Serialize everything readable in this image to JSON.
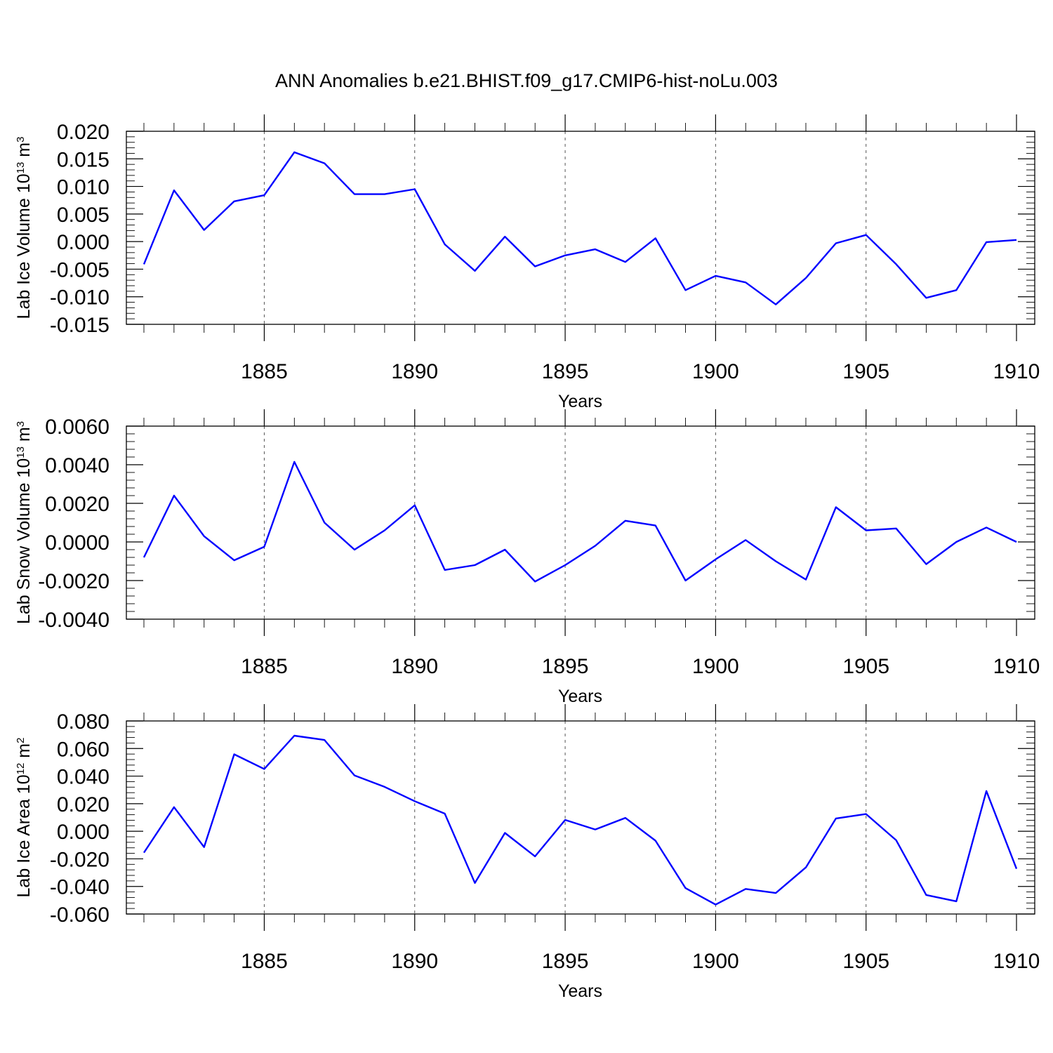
{
  "title": "ANN Anomalies b.e21.BHIST.f09_g17.CMIP6-hist-noLu.003",
  "colors": {
    "line": "#0000ff",
    "grid": "#555555",
    "axes": "#000000"
  },
  "chart_data": [
    {
      "type": "line",
      "ylabel": {
        "text": "Lab Ice Volume 10",
        "sup": "13",
        "unit": " m",
        "unit_sup": "3"
      },
      "xlabel": "Years",
      "xlim": [
        1881,
        1910
      ],
      "ylim": [
        -0.015,
        0.02
      ],
      "yticks": [
        -0.015,
        -0.01,
        -0.005,
        0.0,
        0.005,
        0.01,
        0.015,
        0.02
      ],
      "ytick_labels": [
        "-0.015",
        "-0.010",
        "-0.005",
        "0.000",
        "0.005",
        "0.010",
        "0.015",
        "0.020"
      ],
      "xticks": [
        1885,
        1890,
        1895,
        1900,
        1905,
        1910
      ],
      "xtick_labels": [
        "1885",
        "1890",
        "1895",
        "1900",
        "1905",
        "1910"
      ],
      "grid_x": true,
      "series": [
        {
          "x": [
            1881,
            1882,
            1883,
            1884,
            1885,
            1886,
            1887,
            1888,
            1889,
            1890,
            1891,
            1892,
            1893,
            1894,
            1895,
            1896,
            1897,
            1898,
            1899,
            1900,
            1901,
            1902,
            1903,
            1904,
            1905,
            1906,
            1907,
            1908,
            1909,
            1910
          ],
          "values": [
            -0.0041,
            0.0093,
            0.0021,
            0.0073,
            0.0084,
            0.0162,
            0.0142,
            0.0086,
            0.0086,
            0.0095,
            -0.0005,
            -0.0053,
            0.0009,
            -0.0045,
            -0.0025,
            -0.0014,
            -0.0037,
            0.0006,
            -0.0088,
            -0.0062,
            -0.0074,
            -0.0114,
            -0.0066,
            -0.0003,
            0.0012,
            -0.0041,
            -0.0102,
            -0.0088,
            -0.0001,
            0.0003
          ]
        }
      ]
    },
    {
      "type": "line",
      "ylabel": {
        "text": "Lab Snow Volume 10",
        "sup": "13",
        "unit": " m",
        "unit_sup": "3"
      },
      "xlabel": "Years",
      "xlim": [
        1881,
        1910
      ],
      "ylim": [
        -0.004,
        0.006
      ],
      "yticks": [
        -0.004,
        -0.002,
        0.0,
        0.002,
        0.004,
        0.006
      ],
      "ytick_labels": [
        "-0.0040",
        "-0.0020",
        "0.0000",
        "0.0020",
        "0.0040",
        "0.0060"
      ],
      "xticks": [
        1885,
        1890,
        1895,
        1900,
        1905,
        1910
      ],
      "xtick_labels": [
        "1885",
        "1890",
        "1895",
        "1900",
        "1905",
        "1910"
      ],
      "grid_x": true,
      "series": [
        {
          "x": [
            1881,
            1882,
            1883,
            1884,
            1885,
            1886,
            1887,
            1888,
            1889,
            1890,
            1891,
            1892,
            1893,
            1894,
            1895,
            1896,
            1897,
            1898,
            1899,
            1900,
            1901,
            1902,
            1903,
            1904,
            1905,
            1906,
            1907,
            1908,
            1909,
            1910
          ],
          "values": [
            -0.0008,
            0.0024,
            0.0003,
            -0.00095,
            -0.00025,
            0.00415,
            0.001,
            -0.0004,
            0.0006,
            0.0019,
            -0.00145,
            -0.0012,
            -0.0004,
            -0.00205,
            -0.0012,
            -0.0002,
            0.0011,
            0.00085,
            -0.002,
            -0.0009,
            0.0001,
            -0.001,
            -0.00195,
            0.0018,
            0.0006,
            0.0007,
            -0.00115,
            0.0,
            0.00075,
            0.0
          ]
        }
      ]
    },
    {
      "type": "line",
      "ylabel": {
        "text": "Lab Ice Area 10",
        "sup": "12",
        "unit": " m",
        "unit_sup": "2"
      },
      "xlabel": "Years",
      "xlim": [
        1881,
        1910
      ],
      "ylim": [
        -0.06,
        0.08
      ],
      "yticks": [
        -0.06,
        -0.04,
        -0.02,
        0.0,
        0.02,
        0.04,
        0.06,
        0.08
      ],
      "ytick_labels": [
        "-0.060",
        "-0.040",
        "-0.020",
        "0.000",
        "0.020",
        "0.040",
        "0.060",
        "0.080"
      ],
      "xticks": [
        1885,
        1890,
        1895,
        1900,
        1905,
        1910
      ],
      "xtick_labels": [
        "1885",
        "1890",
        "1895",
        "1900",
        "1905",
        "1910"
      ],
      "grid_x": true,
      "series": [
        {
          "x": [
            1881,
            1882,
            1883,
            1884,
            1885,
            1886,
            1887,
            1888,
            1889,
            1890,
            1891,
            1892,
            1893,
            1894,
            1895,
            1896,
            1897,
            1898,
            1899,
            1900,
            1901,
            1902,
            1903,
            1904,
            1905,
            1906,
            1907,
            1908,
            1909,
            1910
          ],
          "values": [
            -0.0155,
            0.0175,
            -0.0115,
            0.0558,
            0.0452,
            0.0693,
            0.0662,
            0.0405,
            0.0322,
            0.0218,
            0.0128,
            -0.0375,
            -0.0012,
            -0.0182,
            0.0082,
            0.0013,
            0.0097,
            -0.0068,
            -0.0412,
            -0.0532,
            -0.0418,
            -0.0448,
            -0.0262,
            0.0093,
            0.0125,
            -0.0065,
            -0.0462,
            -0.0508,
            0.0292,
            -0.0272
          ]
        }
      ]
    }
  ]
}
